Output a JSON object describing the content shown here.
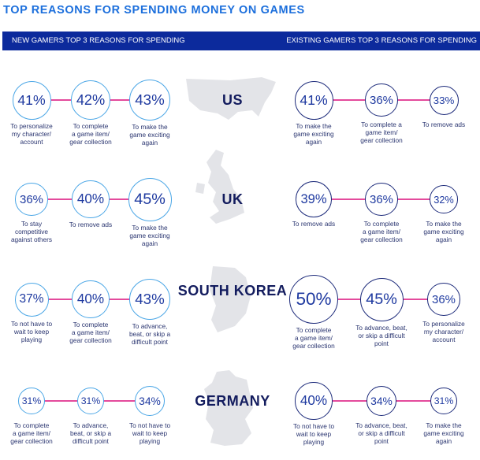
{
  "title": "TOP REASONS FOR SPENDING MONEY ON GAMES",
  "banner": {
    "new_label": "NEW GAMERS TOP 3 REASONS FOR SPENDING",
    "existing_label": "EXISTING GAMERS TOP 3 REASONS FOR SPENDING"
  },
  "colors": {
    "title": "#1c6fdc",
    "banner": "#0c2a9c",
    "new_circle": "#4aa6e6",
    "existing_circle": "#1c2a7a",
    "connector": "#e44a9c"
  },
  "chart_data": {
    "type": "table",
    "title": "TOP REASONS FOR SPENDING MONEY ON GAMES",
    "unit": "%",
    "rows": [
      {
        "country": "US",
        "new": [
          {
            "value": 41,
            "text": "41%",
            "label": "To personalize\nmy character/\naccount"
          },
          {
            "value": 42,
            "text": "42%",
            "label": "To complete\na game item/\ngear collection"
          },
          {
            "value": 43,
            "text": "43%",
            "label": "To make the\ngame exciting\nagain"
          }
        ],
        "existing": [
          {
            "value": 41,
            "text": "41%",
            "label": "To make the\ngame exciting\nagain"
          },
          {
            "value": 36,
            "text": "36%",
            "label": "To complete a\ngame item/\ngear collection"
          },
          {
            "value": 33,
            "text": "33%",
            "label": "To remove ads"
          }
        ]
      },
      {
        "country": "UK",
        "new": [
          {
            "value": 36,
            "text": "36%",
            "label": "To stay\ncompetitive\nagainst others"
          },
          {
            "value": 40,
            "text": "40%",
            "label": "To remove ads"
          },
          {
            "value": 45,
            "text": "45%",
            "label": "To make the\ngame exciting\nagain"
          }
        ],
        "existing": [
          {
            "value": 39,
            "text": "39%",
            "label": "To remove ads"
          },
          {
            "value": 36,
            "text": "36%",
            "label": "To complete\na game item/\ngear collection"
          },
          {
            "value": 32,
            "text": "32%",
            "label": "To make the\ngame exciting\nagain"
          }
        ]
      },
      {
        "country": "SOUTH KOREA",
        "new": [
          {
            "value": 37,
            "text": "37%",
            "label": "To not have to\nwait to keep\nplaying"
          },
          {
            "value": 40,
            "text": "40%",
            "label": "To complete\na game item/\ngear collection"
          },
          {
            "value": 43,
            "text": "43%",
            "label": "To advance,\nbeat, or skip a\ndifficult point"
          }
        ],
        "existing": [
          {
            "value": 50,
            "text": "50%",
            "label": "To complete\na game item/\ngear collection"
          },
          {
            "value": 45,
            "text": "45%",
            "label": "To advance, beat,\nor skip a difficult\npoint"
          },
          {
            "value": 36,
            "text": "36%",
            "label": "To personalize\nmy character/\naccount"
          }
        ]
      },
      {
        "country": "GERMANY",
        "new": [
          {
            "value": 31,
            "text": "31%",
            "label": "To complete\na game item/\ngear collection"
          },
          {
            "value": 31,
            "text": "31%",
            "label": "To advance,\nbeat, or skip a\ndifficult point"
          },
          {
            "value": 34,
            "text": "34%",
            "label": "To not have to\nwait to keep\nplaying"
          }
        ],
        "existing": [
          {
            "value": 40,
            "text": "40%",
            "label": "To not have to\nwait to keep\nplaying"
          },
          {
            "value": 34,
            "text": "34%",
            "label": "To advance, beat,\nor skip a difficult\npoint"
          },
          {
            "value": 31,
            "text": "31%",
            "label": "To make the\ngame exciting\nagain"
          }
        ]
      }
    ]
  }
}
